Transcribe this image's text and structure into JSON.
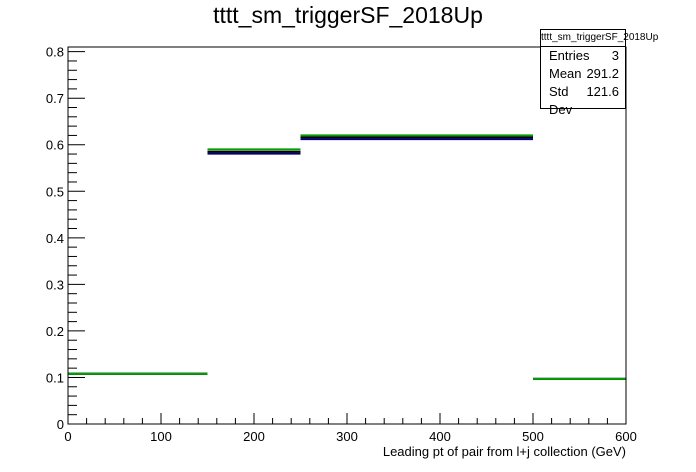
{
  "chart_data": {
    "type": "histogram",
    "title": "tttt_sm_triggerSF_2018Up",
    "xlabel": "Leading pt of pair from l+j collection (GeV)",
    "ylabel": "",
    "xlim": [
      0,
      600
    ],
    "ylim": [
      0,
      0.81
    ],
    "x_ticks": [
      0,
      100,
      200,
      300,
      400,
      500,
      600
    ],
    "y_ticks": [
      0,
      0.1,
      0.2,
      0.3,
      0.4,
      0.5,
      0.6,
      0.7,
      0.8
    ],
    "x_tick_labels": [
      "0",
      "100",
      "200",
      "300",
      "400",
      "500",
      "600"
    ],
    "y_tick_labels": [
      "0",
      "0.1",
      "0.2",
      "0.3",
      "0.4",
      "0.5",
      "0.6",
      "0.7",
      "0.8"
    ],
    "bin_edges": [
      0,
      150,
      250,
      500,
      600
    ],
    "series": [
      {
        "color": "#00007f",
        "values": [
          0.108,
          0.581,
          0.612,
          0.097
        ]
      },
      {
        "color": "#000000",
        "values": [
          0.108,
          0.585,
          0.616,
          0.097
        ]
      },
      {
        "color": "#00a000",
        "values": [
          0.108,
          0.59,
          0.62,
          0.097
        ]
      }
    ],
    "legend": "none",
    "grid": false
  },
  "stats": {
    "header": "tttt_sm_triggerSF_2018Up",
    "rows": [
      {
        "label": "Entries",
        "value": "3"
      },
      {
        "label": "Mean",
        "value": "291.2"
      },
      {
        "label": "Std Dev",
        "value": "121.6"
      }
    ]
  }
}
